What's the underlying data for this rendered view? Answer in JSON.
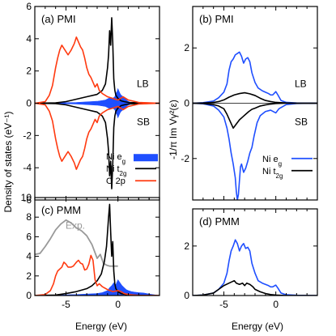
{
  "figure": {
    "ylabel_left": "Density of states (eV⁻¹)",
    "ylabel_right": "-1/π Im Vγ²(ε)",
    "xlabel": "Energy (eV)",
    "colors": {
      "eg": "#1f4fff",
      "t2g": "#000000",
      "o2p": "#ff3a10",
      "exp": "#999999"
    }
  },
  "chart_data": [
    {
      "id": "a",
      "type": "line",
      "title": "(a) PMI",
      "annotations": [
        "LB",
        "SB"
      ],
      "xlim": [
        -8,
        4
      ],
      "ylim": [
        -6,
        6
      ],
      "xticks": [
        -5,
        0
      ],
      "yticks": [
        -6,
        -4,
        -2,
        0,
        2,
        4,
        6
      ],
      "legend": {
        "placement": "bottom-right",
        "entries": [
          "Ni e_g",
          "Ni t_2g",
          "O 2p"
        ]
      },
      "series": [
        {
          "name": "Ni e_g",
          "style": "fill",
          "x": [
            -8,
            -6,
            -4,
            -2,
            -1.2,
            -0.9,
            -0.7,
            -0.5,
            -0.3,
            -0.2,
            -0.1,
            0,
            0.1,
            0.2,
            0.3,
            0.4,
            0.5,
            0.7,
            0.9,
            1.2,
            2,
            4
          ],
          "y": [
            0,
            0.02,
            0.05,
            0.12,
            0.2,
            0.3,
            0.35,
            0.3,
            0.4,
            0.6,
            0.7,
            0.9,
            0.75,
            0.6,
            0.5,
            0.45,
            0.4,
            0.3,
            0.15,
            0.05,
            0.02,
            0
          ],
          "mirror": true
        },
        {
          "name": "Ni t_2g",
          "style": "line",
          "x": [
            -8,
            -6,
            -5,
            -4,
            -3,
            -2,
            -1.5,
            -1.2,
            -1,
            -0.9,
            -0.8,
            -0.7,
            -0.6,
            -0.5,
            -0.4,
            -0.3,
            -0.2,
            0,
            0.3,
            0.6,
            1,
            2,
            4
          ],
          "y": [
            0,
            0.02,
            0.1,
            0.25,
            0.4,
            0.55,
            0.8,
            1.2,
            2.2,
            3.0,
            4.5,
            3.6,
            5.3,
            3.8,
            1.5,
            0.8,
            0.5,
            0.3,
            0.15,
            0.1,
            0.05,
            0.02,
            0
          ],
          "mirror": true
        },
        {
          "name": "O 2p",
          "style": "line",
          "x": [
            -8,
            -7,
            -6.6,
            -6.3,
            -6,
            -5.8,
            -5.6,
            -5.4,
            -5.2,
            -5,
            -4.8,
            -4.5,
            -4.2,
            -4,
            -3.8,
            -3.6,
            -3.4,
            -3.2,
            -3,
            -2.8,
            -2.6,
            -2.4,
            -2.2,
            -2,
            -1.8,
            -1.5,
            -1,
            -0.5,
            0,
            0.5,
            1,
            2,
            4
          ],
          "y": [
            0,
            0.1,
            0.5,
            1.1,
            2.2,
            2.8,
            3.3,
            3.6,
            3.4,
            3.2,
            3.0,
            3.3,
            3.7,
            4.1,
            3.8,
            3.5,
            3.3,
            2.8,
            2.2,
            1.8,
            1.6,
            1.3,
            1.0,
            1.2,
            0.8,
            0.6,
            0.4,
            0.3,
            0.2,
            0.4,
            0.2,
            0.05,
            0
          ],
          "mirror": true
        }
      ]
    },
    {
      "id": "b",
      "type": "line",
      "title": "(b) PMI",
      "annotations": [
        "LB",
        "SB"
      ],
      "xlim": [
        -8,
        4
      ],
      "ylim": [
        -3.5,
        3.5
      ],
      "xticks": [
        -5,
        0
      ],
      "yticks": [
        -2,
        0,
        2
      ],
      "legend": {
        "placement": "bottom-right",
        "entries": [
          "Ni e_g",
          "Ni t_2g"
        ]
      },
      "series": [
        {
          "name": "Ni e_g",
          "x": [
            -8,
            -7,
            -6,
            -5.5,
            -5,
            -4.7,
            -4.5,
            -4.3,
            -4.1,
            -3.9,
            -3.7,
            -3.5,
            -3.3,
            -3.1,
            -2.9,
            -2.7,
            -2.5,
            -2.3,
            -2,
            -1.7,
            -1.3,
            -1,
            -0.7,
            -0.5,
            -0.3,
            -0.1,
            0,
            0.2,
            0.5,
            1,
            2,
            4
          ],
          "y": [
            0,
            0.02,
            0.08,
            0.2,
            0.4,
            0.7,
            1.2,
            1.5,
            1.6,
            1.75,
            1.8,
            1.85,
            1.7,
            1.45,
            1.6,
            1.65,
            1.5,
            1.1,
            0.75,
            0.55,
            0.45,
            0.4,
            0.35,
            0.3,
            0.3,
            0.38,
            0.42,
            0.3,
            0.1,
            0.03,
            0.01,
            0
          ]
        },
        {
          "name": "Ni e_g",
          "x": [
            -8,
            -7,
            -6,
            -5.5,
            -5,
            -4.7,
            -4.5,
            -4.3,
            -4.1,
            -3.9,
            -3.8,
            -3.7,
            -3.6,
            -3.5,
            -3.4,
            -3.3,
            -3.1,
            -2.9,
            -2.7,
            -2.5,
            -2.3,
            -2.1,
            -1.8,
            -1.5,
            -1,
            -0.5,
            0,
            0.3,
            1,
            2,
            4
          ],
          "y": [
            0,
            -0.02,
            -0.1,
            -0.25,
            -0.5,
            -0.9,
            -1.3,
            -1.8,
            -2.2,
            -2.7,
            -3.2,
            -3.5,
            -3.3,
            -2.8,
            -2.3,
            -2.2,
            -2.5,
            -2.35,
            -2.1,
            -1.8,
            -1.6,
            -1.2,
            -0.7,
            -0.45,
            -0.3,
            -0.25,
            -0.35,
            -0.2,
            -0.05,
            -0.01,
            0
          ]
        },
        {
          "name": "Ni t_2g",
          "x": [
            -8,
            -7,
            -6,
            -5.5,
            -5,
            -4.5,
            -4,
            -3.5,
            -3,
            -2.5,
            -2,
            -1.5,
            -1,
            -0.5,
            0,
            1,
            2,
            4
          ],
          "y": [
            0,
            0.01,
            0.03,
            0.06,
            0.12,
            0.22,
            0.3,
            0.35,
            0.38,
            0.34,
            0.28,
            0.18,
            0.1,
            0.06,
            0.03,
            0.01,
            0,
            0
          ]
        },
        {
          "name": "Ni t_2g",
          "x": [
            -8,
            -7,
            -6,
            -5.5,
            -5,
            -4.7,
            -4.4,
            -4.1,
            -3.8,
            -3.5,
            -3.2,
            -2.9,
            -2.6,
            -2.3,
            -2,
            -1.5,
            -1,
            -0.5,
            0,
            1,
            2,
            4
          ],
          "y": [
            0,
            -0.01,
            -0.05,
            -0.1,
            -0.2,
            -0.4,
            -0.65,
            -0.9,
            -0.75,
            -0.6,
            -0.5,
            -0.4,
            -0.3,
            -0.22,
            -0.18,
            -0.1,
            -0.06,
            -0.03,
            -0.01,
            0,
            0,
            0
          ]
        }
      ]
    },
    {
      "id": "c",
      "type": "line",
      "title": "(c) PMM",
      "annotations": [
        "Exp."
      ],
      "xlim": [
        -8,
        4
      ],
      "ylim": [
        0,
        10
      ],
      "xticks": [
        -5,
        0
      ],
      "xticklabels": [
        "-5",
        "0"
      ],
      "yticks": [
        0,
        2,
        4,
        6,
        8,
        10
      ],
      "series": [
        {
          "name": "Exp.",
          "x": [
            -8,
            -7.5,
            -7,
            -6.5,
            -6,
            -5.5,
            -5,
            -4.5,
            -4,
            -3.5,
            -3,
            -2.5,
            -2,
            -1.7,
            -1.4,
            -1.1,
            -0.8,
            -0.5,
            -0.2,
            0
          ],
          "y": [
            4.2,
            4.3,
            5.0,
            5.8,
            6.7,
            7.3,
            7.7,
            7.4,
            6.9,
            6.6,
            6.1,
            5.2,
            3.8,
            4.2,
            3.3,
            3.1,
            3.0,
            3.0,
            3.0,
            3.0
          ]
        },
        {
          "name": "Ni e_g",
          "style": "fill",
          "x": [
            -8,
            -6,
            -4,
            -2,
            -1.5,
            -1,
            -0.8,
            -0.6,
            -0.4,
            -0.2,
            0,
            0.2,
            0.4,
            0.6,
            0.8,
            1,
            1.3,
            1.6,
            2,
            2.5,
            3,
            4
          ],
          "y": [
            0,
            0.05,
            0.1,
            0.2,
            0.3,
            0.5,
            0.8,
            1.0,
            1.3,
            1.1,
            1.6,
            1.3,
            1.0,
            0.8,
            0.6,
            0.5,
            0.4,
            0.35,
            0.3,
            0.25,
            0.15,
            0
          ]
        },
        {
          "name": "Ni t_2g",
          "x": [
            -8,
            -6,
            -5,
            -4,
            -3,
            -2.5,
            -2,
            -1.6,
            -1.3,
            -1.1,
            -0.9,
            -0.8,
            -0.7,
            -0.6,
            -0.5,
            -0.4,
            -0.3,
            -0.2,
            0,
            0.3,
            0.6,
            1,
            2,
            4
          ],
          "y": [
            0,
            0.05,
            0.2,
            0.4,
            0.7,
            1.0,
            1.5,
            2.2,
            3.5,
            5.0,
            8.0,
            9.3,
            6.5,
            4.0,
            5.5,
            2.5,
            1.2,
            0.7,
            0.4,
            0.2,
            0.15,
            0.05,
            0.02,
            0
          ]
        },
        {
          "name": "O 2p",
          "x": [
            -8,
            -7,
            -6.5,
            -6.2,
            -6,
            -5.8,
            -5.6,
            -5.4,
            -5.2,
            -5,
            -4.8,
            -4.5,
            -4.3,
            -4,
            -3.8,
            -3.6,
            -3.4,
            -3.2,
            -3,
            -2.8,
            -2.6,
            -2.4,
            -2.2,
            -2,
            -1.8,
            -1.5,
            -1,
            -0.5,
            0,
            0.3,
            0.6,
            1,
            2,
            4
          ],
          "y": [
            0,
            0.1,
            0.5,
            1.2,
            2.0,
            2.5,
            2.7,
            2.9,
            3.4,
            3.2,
            2.9,
            2.9,
            3.0,
            3.4,
            3.6,
            3.3,
            3.2,
            2.6,
            2.7,
            3.2,
            4.1,
            3.6,
            1.6,
            1.0,
            1.2,
            0.9,
            0.6,
            0.4,
            0.5,
            0.4,
            0.2,
            0.1,
            0.02,
            0
          ]
        }
      ]
    },
    {
      "id": "d",
      "type": "line",
      "title": "(d) PMM",
      "xlim": [
        -8,
        4
      ],
      "ylim": [
        0,
        3.5
      ],
      "xticks": [
        -5,
        0
      ],
      "xticklabels": [
        "-5",
        "0"
      ],
      "yticks": [
        0,
        2
      ],
      "series": [
        {
          "name": "Ni e_g",
          "x": [
            -8,
            -7,
            -6,
            -5.5,
            -5,
            -4.7,
            -4.5,
            -4.3,
            -4.1,
            -3.9,
            -3.7,
            -3.5,
            -3.3,
            -3.1,
            -2.9,
            -2.7,
            -2.5,
            -2.3,
            -2,
            -1.7,
            -1.3,
            -1,
            -0.7,
            -0.5,
            -0.3,
            -0.1,
            0,
            0.2,
            0.5,
            1,
            2,
            4
          ],
          "y": [
            0,
            0.02,
            0.1,
            0.25,
            0.5,
            0.9,
            1.4,
            1.8,
            2.0,
            2.25,
            2.1,
            1.8,
            2.0,
            2.1,
            1.9,
            1.95,
            1.8,
            1.3,
            0.9,
            0.6,
            0.5,
            0.45,
            0.4,
            0.35,
            0.35,
            0.4,
            0.42,
            0.3,
            0.1,
            0.03,
            0.01,
            0
          ]
        },
        {
          "name": "Ni t_2g",
          "x": [
            -8,
            -7,
            -6,
            -5.5,
            -5,
            -4.5,
            -4,
            -3.8,
            -3.5,
            -3.2,
            -3,
            -2.8,
            -2.5,
            -2.2,
            -2,
            -1.5,
            -1,
            -0.5,
            0,
            1,
            2,
            4
          ],
          "y": [
            0,
            0.02,
            0.1,
            0.25,
            0.4,
            0.5,
            0.6,
            0.5,
            0.45,
            0.5,
            0.4,
            0.5,
            0.45,
            0.35,
            0.25,
            0.15,
            0.08,
            0.04,
            0.02,
            0,
            0,
            0
          ]
        }
      ]
    }
  ]
}
